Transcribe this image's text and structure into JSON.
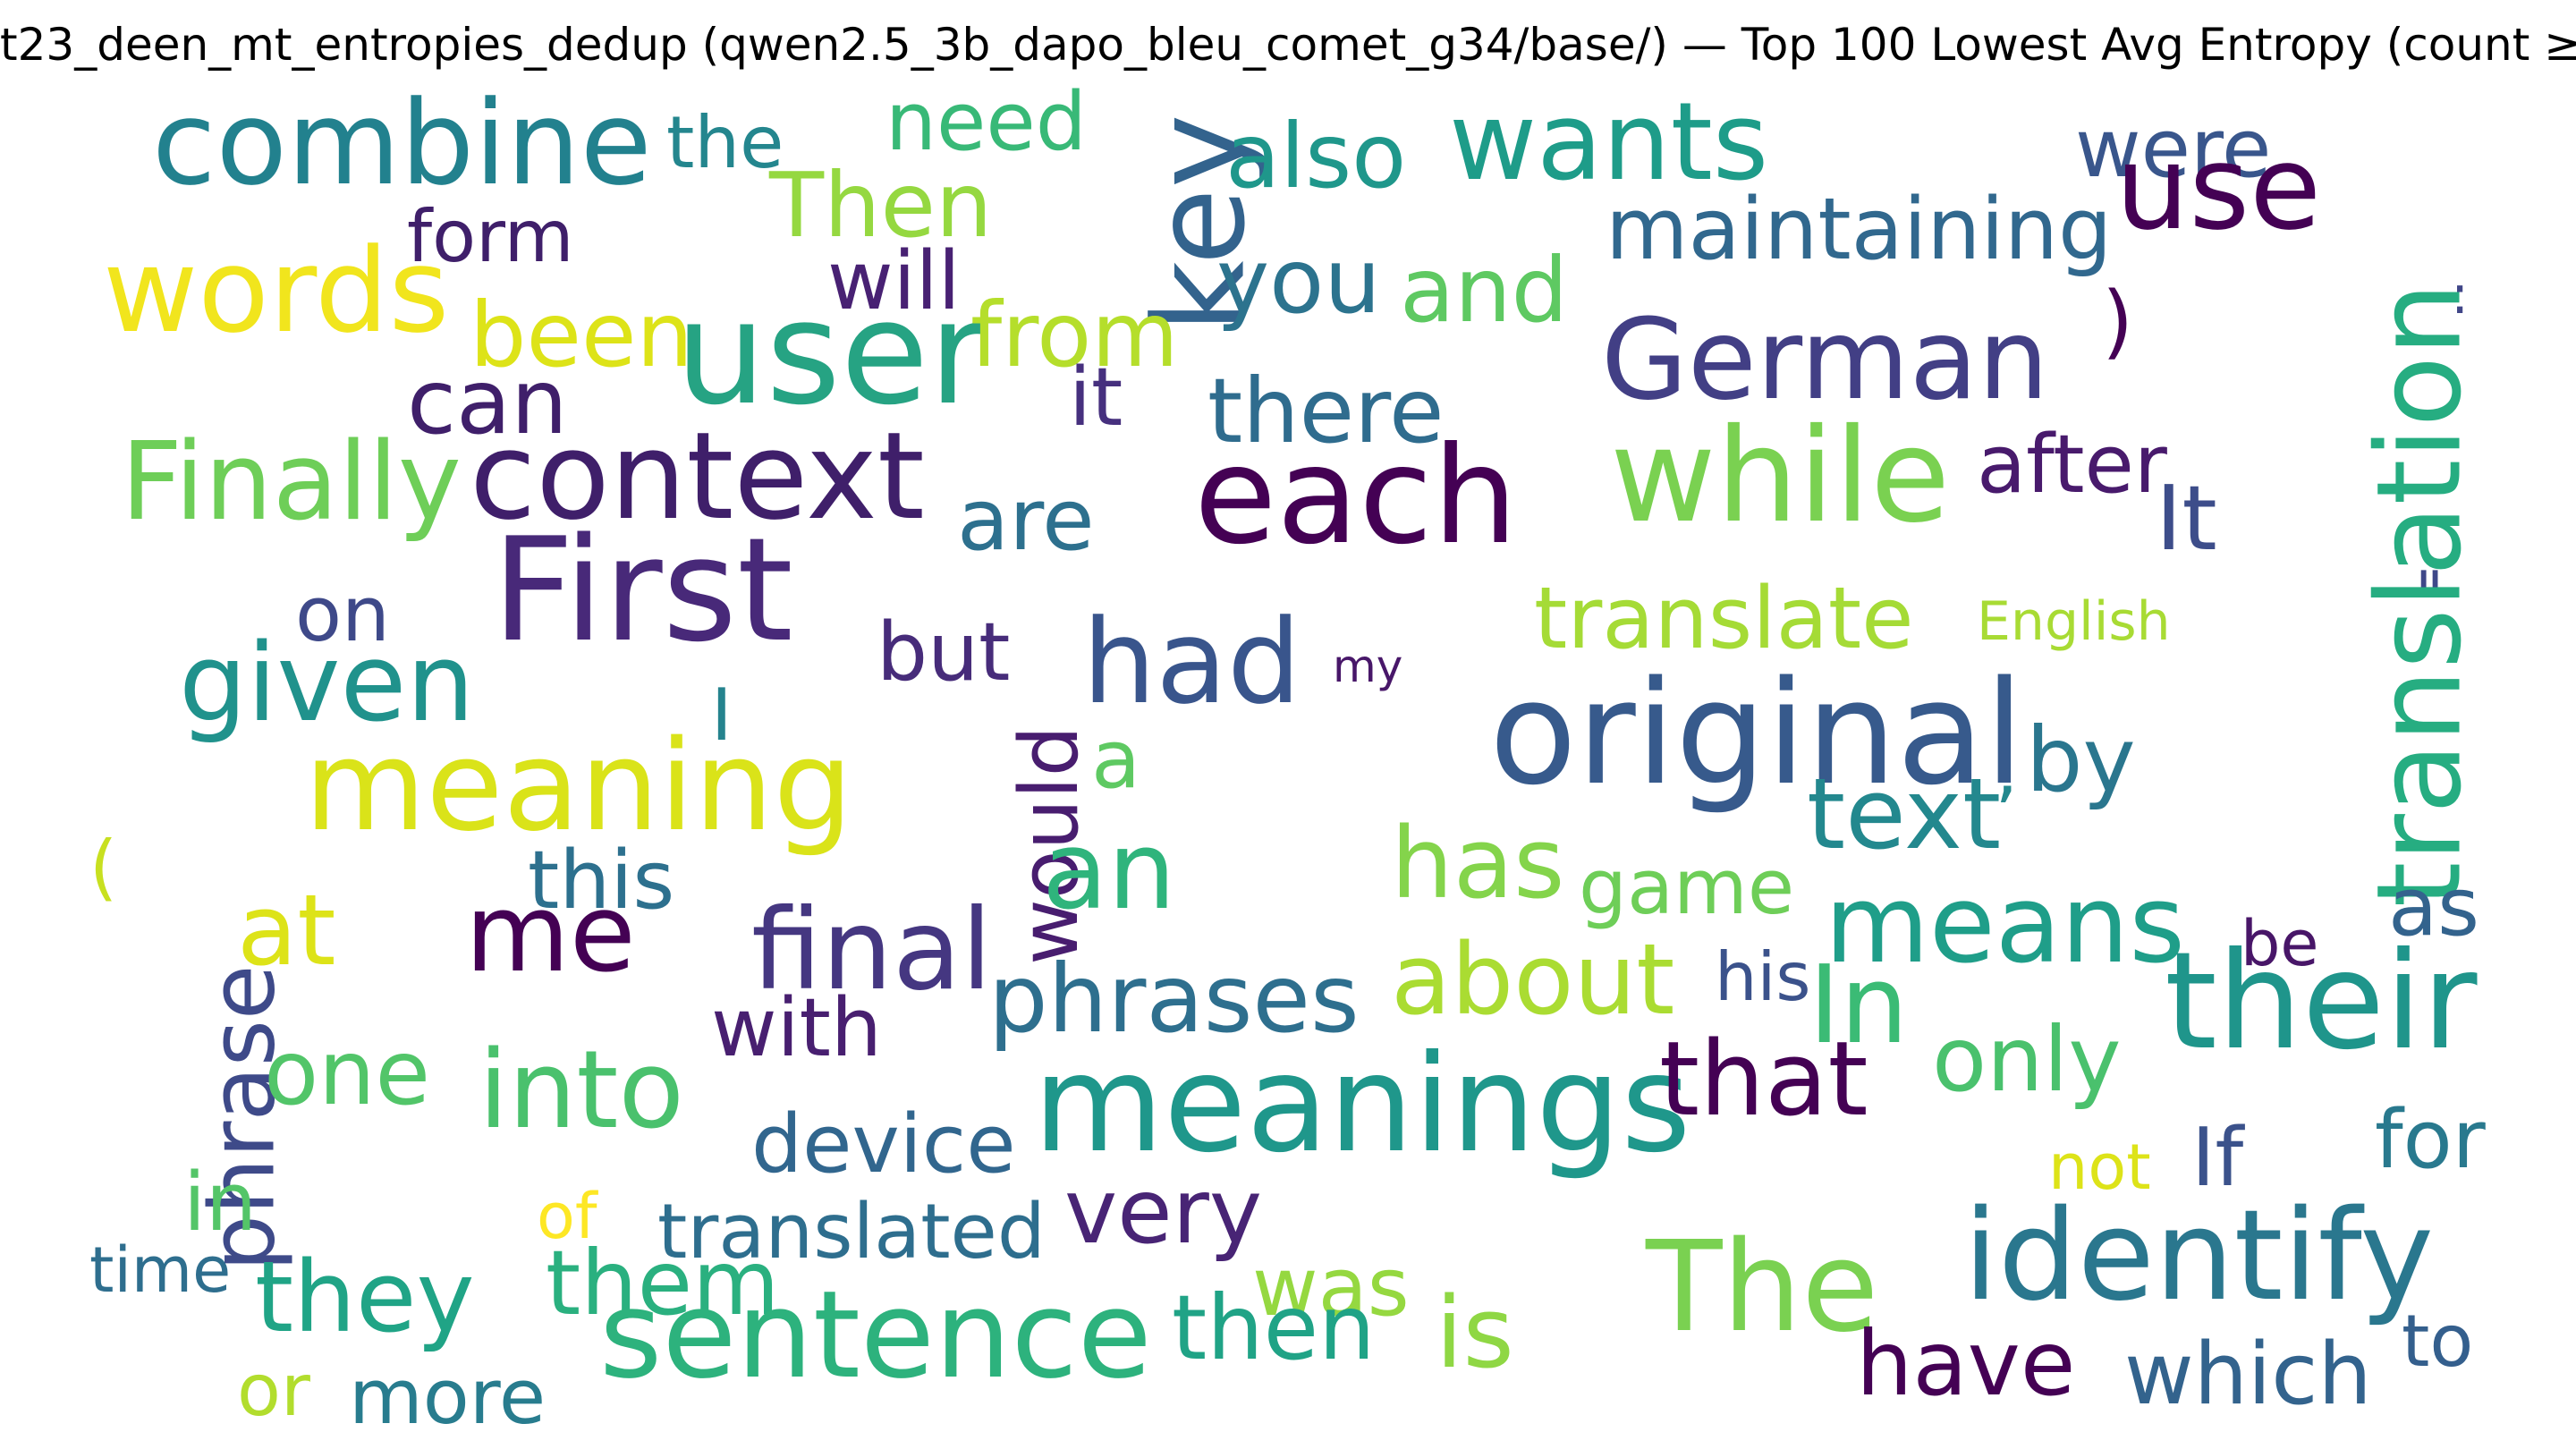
{
  "title": "t23_deen_mt_entropies_dedup (qwen2.5_3b_dapo_bleu_comet_g34/base/) — Top 100 Lowest Avg Entropy (count ≥",
  "words": [
    {
      "text": "combine",
      "color": "#22818e"
    },
    {
      "text": "the",
      "color": "#24868e"
    },
    {
      "text": "need",
      "color": "#38b977"
    },
    {
      "text": "key",
      "color": "#33638d"
    },
    {
      "text": "also",
      "color": "#1f978b"
    },
    {
      "text": "wants",
      "color": "#1e9c89"
    },
    {
      "text": "were",
      "color": "#39568c"
    },
    {
      "text": "use",
      "color": "#440154"
    },
    {
      "text": "form",
      "color": "#3f1f6a"
    },
    {
      "text": "Then",
      "color": "#95d840"
    },
    {
      "text": "maintaining",
      "color": "#31688e"
    },
    {
      "text": "words",
      "color": "#f1e51d"
    },
    {
      "text": "will",
      "color": "#482173"
    },
    {
      "text": "you",
      "color": "#2c738e"
    },
    {
      "text": "and",
      "color": "#5ec962"
    },
    {
      "text": "been",
      "color": "#dde318"
    },
    {
      "text": "user",
      "color": "#26a383"
    },
    {
      "text": "from",
      "color": "#b5de2b"
    },
    {
      "text": "German",
      "color": "#423f85"
    },
    {
      "text": ")",
      "color": "#440154"
    },
    {
      "text": ":",
      "color": "#404688"
    },
    {
      "text": "can",
      "color": "#3f1f6a"
    },
    {
      "text": "it",
      "color": "#46307e"
    },
    {
      "text": "there",
      "color": "#2f6c8e"
    },
    {
      "text": "translation",
      "color": "#26ad81"
    },
    {
      "text": "Finally",
      "color": "#6ece58"
    },
    {
      "text": "context",
      "color": "#3f1f6a"
    },
    {
      "text": "while",
      "color": "#7ad151"
    },
    {
      "text": "after",
      "color": "#481a6c"
    },
    {
      "text": "are",
      "color": "#2d708e"
    },
    {
      "text": "each",
      "color": "#440154"
    },
    {
      "text": "It",
      "color": "#3d4d8a"
    },
    {
      "text": "First",
      "color": "#482979"
    },
    {
      "text": "on",
      "color": "#3e4989"
    },
    {
      "text": "translate",
      "color": "#a5db36"
    },
    {
      "text": "English",
      "color": "#a8db34"
    },
    {
      "text": "\"",
      "color": "#3f4889"
    },
    {
      "text": "given",
      "color": "#20928c"
    },
    {
      "text": "but",
      "color": "#472c7a"
    },
    {
      "text": "had",
      "color": "#39558c"
    },
    {
      "text": "my",
      "color": "#481769"
    },
    {
      "text": "original",
      "color": "#375a8c"
    },
    {
      "text": "I",
      "color": "#25838e"
    },
    {
      "text": "meaning",
      "color": "#dae319"
    },
    {
      "text": "would",
      "color": "#481d6f"
    },
    {
      "text": "a",
      "color": "#5ec962"
    },
    {
      "text": "by",
      "color": "#2a768e"
    },
    {
      "text": "text",
      "color": "#23888e"
    },
    {
      "text": "’",
      "color": "#23888e"
    },
    {
      "text": "(",
      "color": "#c8e020"
    },
    {
      "text": "phrase",
      "color": "#3e4a89"
    },
    {
      "text": "this",
      "color": "#2d708e"
    },
    {
      "text": "an",
      "color": "#2fb47c"
    },
    {
      "text": "has",
      "color": "#84d44b"
    },
    {
      "text": "game",
      "color": "#6ece58"
    },
    {
      "text": "means",
      "color": "#1f9e89"
    },
    {
      "text": "as",
      "color": "#33638d"
    },
    {
      "text": "at",
      "color": "#dde318"
    },
    {
      "text": "me",
      "color": "#440154"
    },
    {
      "text": "final",
      "color": "#453781"
    },
    {
      "text": "about",
      "color": "#aadc32"
    },
    {
      "text": "his",
      "color": "#3b528b"
    },
    {
      "text": "be",
      "color": "#481668"
    },
    {
      "text": "their",
      "color": "#1f958b"
    },
    {
      "text": "phrases",
      "color": "#2e6f8e"
    },
    {
      "text": "In",
      "color": "#3bbb75"
    },
    {
      "text": "with",
      "color": "#481f70"
    },
    {
      "text": "only",
      "color": "#4ac16d"
    },
    {
      "text": "one",
      "color": "#52c569"
    },
    {
      "text": "into",
      "color": "#4ac16d"
    },
    {
      "text": "meanings",
      "color": "#1f978b"
    },
    {
      "text": "that",
      "color": "#440154"
    },
    {
      "text": "device",
      "color": "#31668e"
    },
    {
      "text": "not",
      "color": "#dde318"
    },
    {
      "text": "If",
      "color": "#3b528b"
    },
    {
      "text": "for",
      "color": "#29798e"
    },
    {
      "text": "in",
      "color": "#54c568"
    },
    {
      "text": "very",
      "color": "#482475"
    },
    {
      "text": "of",
      "color": "#fde725"
    },
    {
      "text": "translated",
      "color": "#2e6e8e"
    },
    {
      "text": "time",
      "color": "#2e6e8e"
    },
    {
      "text": "was",
      "color": "#95d840"
    },
    {
      "text": "The",
      "color": "#7ad151"
    },
    {
      "text": "identify",
      "color": "#2a778e"
    },
    {
      "text": "they",
      "color": "#20a486"
    },
    {
      "text": "them",
      "color": "#2ab07f"
    },
    {
      "text": "sentence",
      "color": "#2db27d"
    },
    {
      "text": "then",
      "color": "#20a386"
    },
    {
      "text": "is",
      "color": "#8fd744"
    },
    {
      "text": "have",
      "color": "#440154"
    },
    {
      "text": "which",
      "color": "#33638d"
    },
    {
      "text": "to",
      "color": "#345f8d"
    },
    {
      "text": "or",
      "color": "#b2dd2d"
    },
    {
      "text": "more",
      "color": "#287c8e"
    }
  ]
}
